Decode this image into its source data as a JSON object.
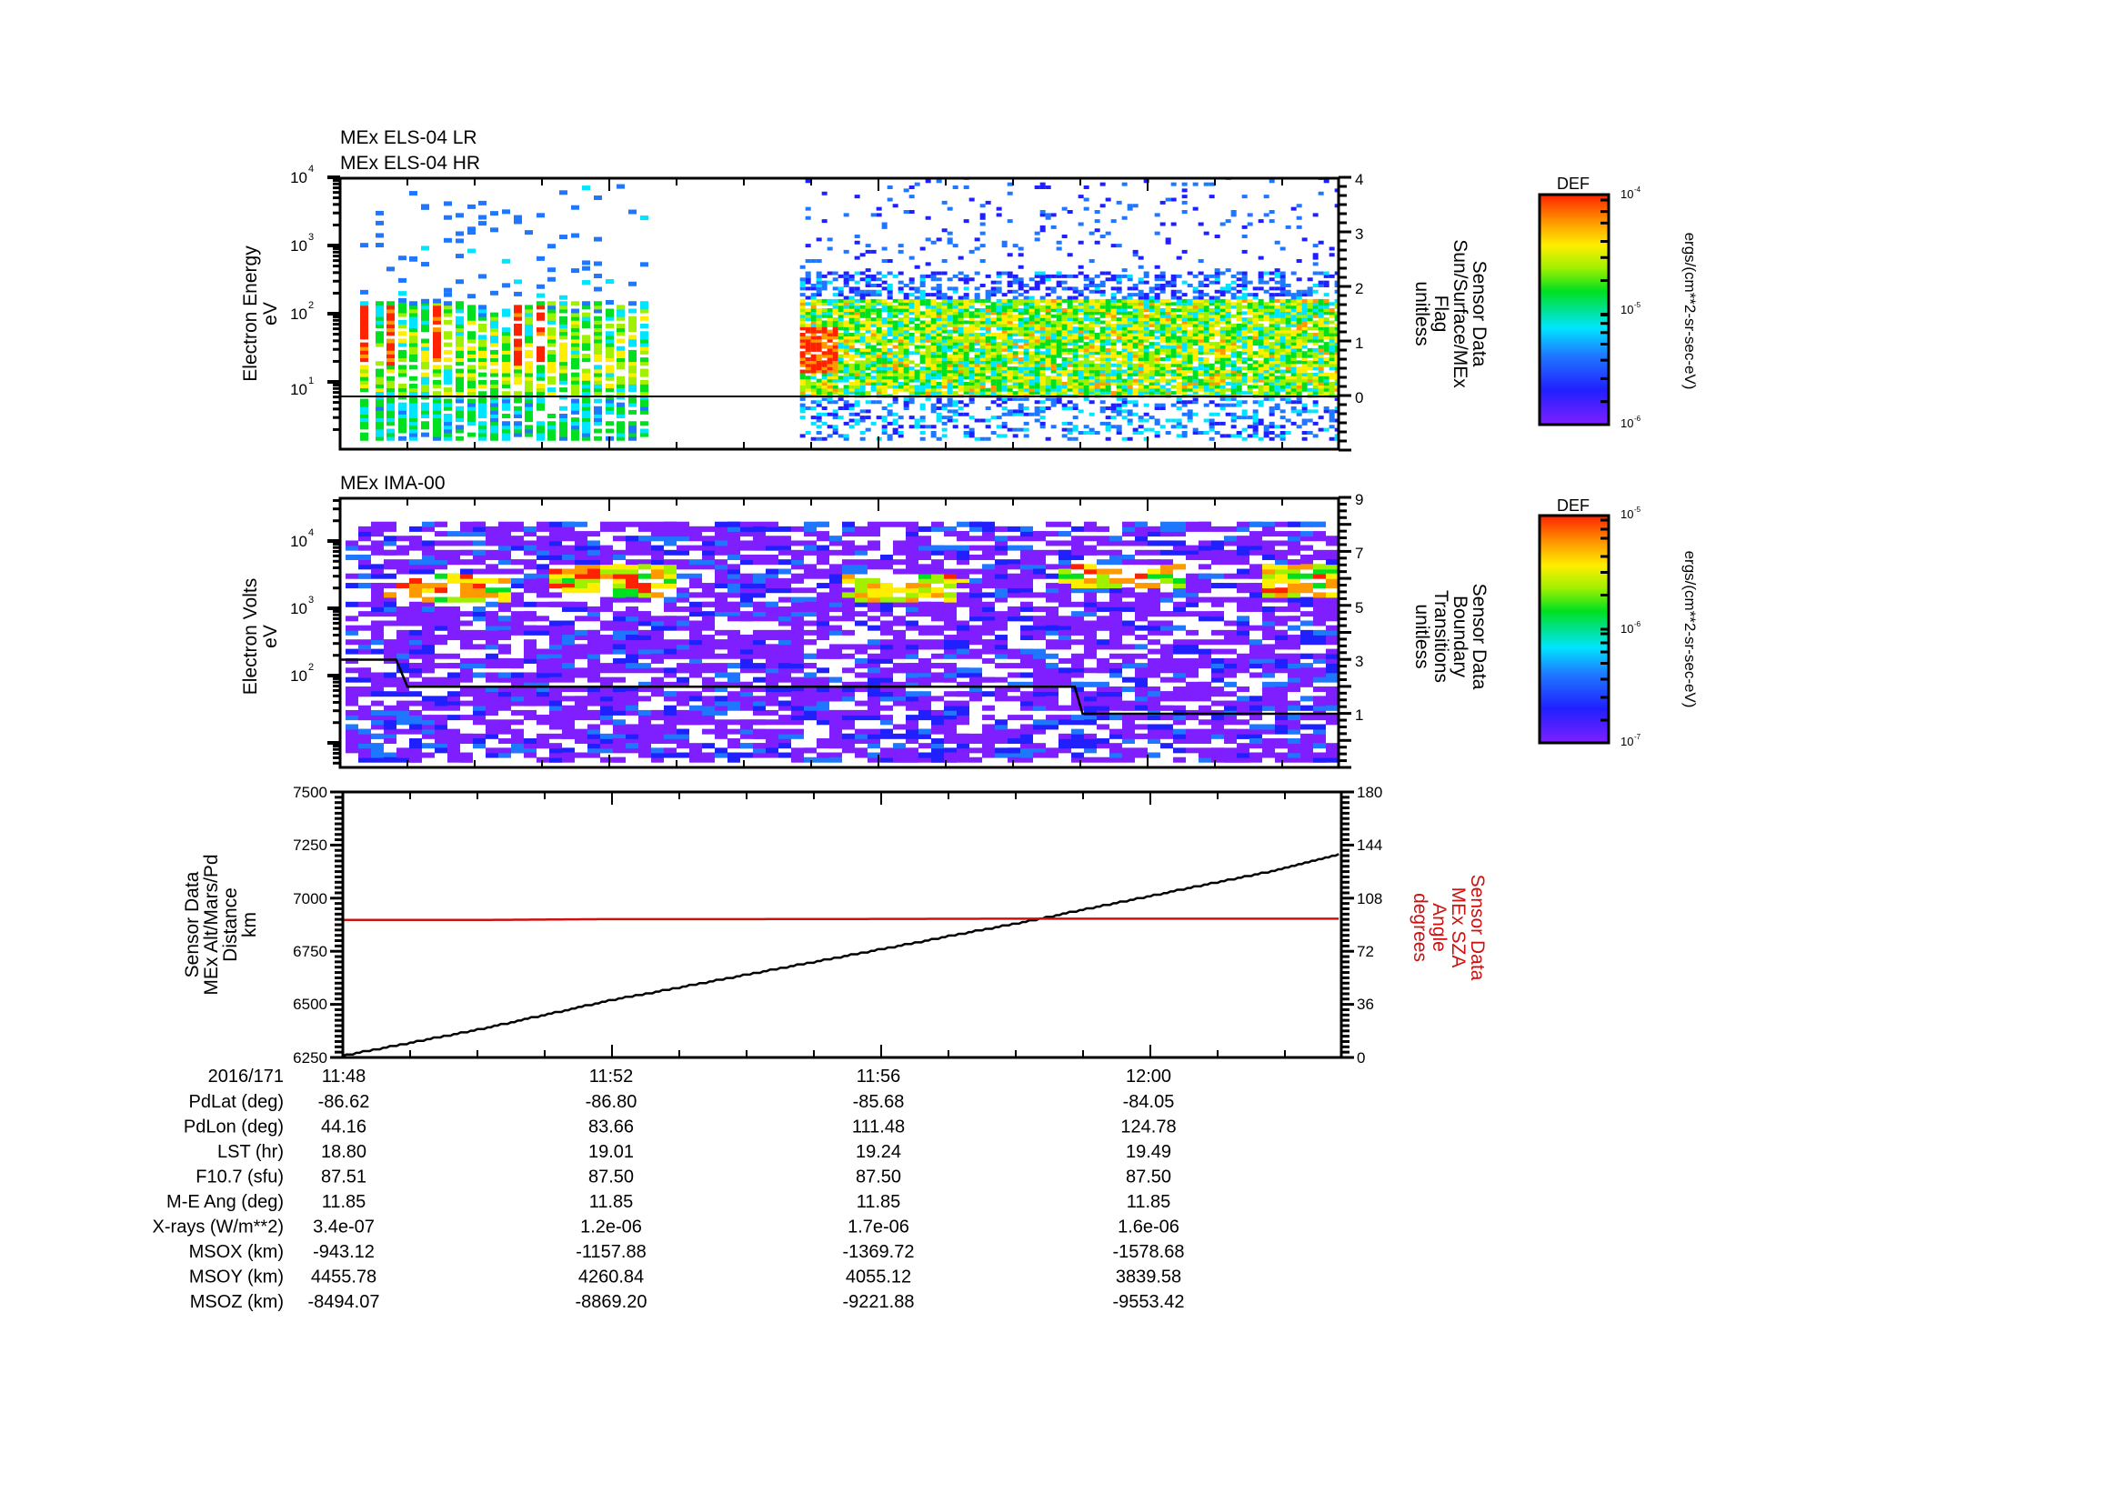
{
  "chart_data": [
    {
      "type": "heatmap",
      "panel": "electron-spectrogram",
      "titles": [
        "MEx ELS-04 LR",
        "MEx ELS-04 HR"
      ],
      "ylabel": [
        "Electron Energy",
        "eV"
      ],
      "yscale": "log",
      "ylim_log10": [
        0.1,
        4.0
      ],
      "yticks": [
        {
          "label": "10",
          "exp": "4",
          "value": 4
        },
        {
          "label": "10",
          "exp": "3",
          "value": 3
        },
        {
          "label": "10",
          "exp": "2",
          "value": 2
        },
        {
          "label": "10",
          "exp": "1",
          "value": 1
        }
      ],
      "right_axis": {
        "label": [
          "Sensor Data",
          "Sun/Surface/MEx",
          "Flag",
          "unitless"
        ],
        "ylim": [
          -0.97,
          4
        ],
        "ticks": [
          "4",
          "3",
          "2",
          "1",
          "0"
        ],
        "line_value": 0
      },
      "data_regions": [
        {
          "start": "11:48:12",
          "end": "11:51:05",
          "note": "sparse vertical bursts, peak flux 10-100 eV"
        },
        {
          "start": "11:54:50",
          "end": "12:02:50",
          "note": "continuous broadband, 5-150 eV"
        }
      ],
      "colorbar": {
        "title": "DEF",
        "units": "ergs/(cm**2-sr-sec-eV)",
        "ticks": [
          {
            "label": "10",
            "exp": "-4"
          },
          {
            "label": "10",
            "exp": "-5"
          },
          {
            "label": "10",
            "exp": "-6"
          }
        ],
        "range": [
          1e-06,
          0.0001
        ]
      }
    },
    {
      "type": "heatmap",
      "panel": "ion-spectrogram",
      "titles": [
        "MEx IMA-00"
      ],
      "ylabel": [
        "Electron Volts",
        "eV"
      ],
      "yscale": "log",
      "ylim_log10": [
        0.65,
        4.65
      ],
      "yticks": [
        {
          "label": "10",
          "exp": "4",
          "value": 4
        },
        {
          "label": "10",
          "exp": "3",
          "value": 3
        },
        {
          "label": "10",
          "exp": "2",
          "value": 2
        }
      ],
      "right_axis": {
        "label": [
          "Sensor Data",
          "Boundary",
          "Transitions",
          "unitless"
        ],
        "ylim": [
          -1,
          9
        ],
        "ticks": [
          "9",
          "7",
          "5",
          "3",
          "1"
        ],
        "step_line": [
          {
            "t": "11:48",
            "v": 3
          },
          {
            "t": "11:48:50",
            "v": 3
          },
          {
            "t": "11:49:00",
            "v": 2
          },
          {
            "t": "11:58:55",
            "v": 2
          },
          {
            "t": "11:59:02",
            "v": 1
          },
          {
            "t": "12:02:50",
            "v": 1
          }
        ]
      },
      "hot_spots": [
        "11:49:30 ~1-3 keV",
        "11:52:00 ~1.5-4 keV",
        "11:56:15 ~1-3 keV",
        "11:59:30 ~2-4 keV",
        "12:02:30 ~1-3 keV"
      ],
      "colorbar": {
        "title": "DEF",
        "units": "ergs/(cm**2-sr-sec-eV)",
        "ticks": [
          {
            "label": "10",
            "exp": "-5"
          },
          {
            "label": "10",
            "exp": "-6"
          },
          {
            "label": "10",
            "exp": "-7"
          }
        ],
        "range": [
          1e-07,
          1e-05
        ]
      }
    },
    {
      "type": "line",
      "panel": "altitude-sza",
      "ylabel": [
        "Sensor Data",
        "MEx Alt/Mars/Pd",
        "Distance",
        "km"
      ],
      "ylim": [
        6250,
        7500
      ],
      "yticks": [
        "7500",
        "7250",
        "7000",
        "6750",
        "6500",
        "6250"
      ],
      "right_axis": {
        "label": [
          "Sensor Data",
          "MEx SZA",
          "Angle",
          "degrees"
        ],
        "color": "#cc1111",
        "ylim": [
          0,
          180
        ],
        "ticks": [
          "180",
          "144",
          "108",
          "72",
          "36",
          "0"
        ]
      },
      "x": [
        "11:48",
        "11:50",
        "11:52",
        "11:54",
        "11:56",
        "11:58",
        "12:00",
        "12:02",
        "12:02:50"
      ],
      "series": [
        {
          "name": "MEx Alt/Mars/Pd Distance (km)",
          "color": "#000000",
          "values": [
            6258,
            6380,
            6520,
            6640,
            6760,
            6880,
            7010,
            7140,
            7210
          ]
        },
        {
          "name": "MEx SZA Angle (deg)",
          "color": "#cc1111",
          "values": [
            93.2,
            93.2,
            93.8,
            93.8,
            93.9,
            94.1,
            94.1,
            94.1,
            94.1
          ]
        }
      ]
    }
  ],
  "time_axis": {
    "date": "2016/171",
    "ticks": [
      "11:48",
      "11:52",
      "11:56",
      "12:00"
    ]
  },
  "ephemeris": {
    "rows": [
      {
        "label": "PdLat (deg)",
        "values": [
          "-86.62",
          "-86.80",
          "-85.68",
          "-84.05"
        ]
      },
      {
        "label": "PdLon (deg)",
        "values": [
          "44.16",
          "83.66",
          "111.48",
          "124.78"
        ]
      },
      {
        "label": "LST (hr)",
        "values": [
          "18.80",
          "19.01",
          "19.24",
          "19.49"
        ]
      },
      {
        "label": "F10.7 (sfu)",
        "values": [
          "87.51",
          "87.50",
          "87.50",
          "87.50"
        ]
      },
      {
        "label": "M-E Ang (deg)",
        "values": [
          "11.85",
          "11.85",
          "11.85",
          "11.85"
        ]
      },
      {
        "label": "X-rays (W/m**2)",
        "values": [
          "3.4e-07",
          "1.2e-06",
          "1.7e-06",
          "1.6e-06"
        ]
      },
      {
        "label": "MSOX (km)",
        "values": [
          "-943.12",
          "-1157.88",
          "-1369.72",
          "-1578.68"
        ]
      },
      {
        "label": "MSOY (km)",
        "values": [
          "4455.78",
          "4260.84",
          "4055.12",
          "3839.58"
        ]
      },
      {
        "label": "MSOZ (km)",
        "values": [
          "-8494.07",
          "-8869.20",
          "-9221.88",
          "-9553.42"
        ]
      }
    ]
  },
  "colors": {
    "frame": "#000000",
    "sza_line": "#cc1111",
    "rainbow": [
      "#7f1fff",
      "#2020ff",
      "#1f77ff",
      "#00e5ff",
      "#00e020",
      "#a0f000",
      "#ffee00",
      "#ff9900",
      "#ff2200"
    ]
  }
}
